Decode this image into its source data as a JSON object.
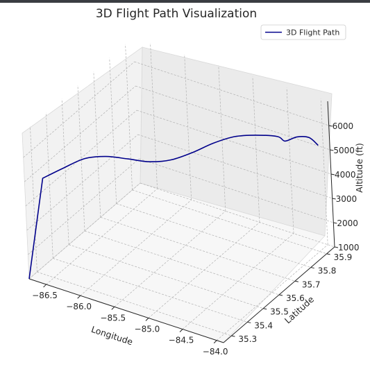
{
  "chart_data": {
    "type": "line",
    "projection": "3d",
    "title": "3D Flight Path Visualization",
    "xlabel": "Longitude",
    "ylabel": "Latitude",
    "zlabel": "Altitude (ft)",
    "xlim": [
      -86.75,
      -83.9
    ],
    "ylim": [
      35.25,
      35.95
    ],
    "zlim": [
      1000,
      7000
    ],
    "xticks": [
      "−86.5",
      "−86.0",
      "−85.5",
      "−85.0",
      "−84.5",
      "−84.0"
    ],
    "xtick_values": [
      -86.5,
      -86.0,
      -85.5,
      -85.0,
      -84.5,
      -84.0
    ],
    "yticks": [
      "35.3",
      "35.4",
      "35.5",
      "35.6",
      "35.7",
      "35.8",
      "35.9"
    ],
    "ytick_values": [
      35.3,
      35.4,
      35.5,
      35.6,
      35.7,
      35.8,
      35.9
    ],
    "zticks": [
      "1000",
      "2000",
      "3000",
      "4000",
      "5000",
      "6000"
    ],
    "ztick_values": [
      1000,
      2000,
      3000,
      4000,
      5000,
      6000
    ],
    "grid": true,
    "legend": "top-right",
    "series": [
      {
        "name": "3D Flight Path",
        "color": "#00008b",
        "points": [
          {
            "lon": -86.75,
            "lat": 35.25,
            "alt": 1000
          },
          {
            "lon": -86.6,
            "lat": 35.3,
            "alt": 5000
          },
          {
            "lon": -86.42,
            "lat": 35.357,
            "alt": 5271
          },
          {
            "lon": -86.24,
            "lat": 35.414,
            "alt": 5500
          },
          {
            "lon": -86.06,
            "lat": 35.471,
            "alt": 5432
          },
          {
            "lon": -85.88,
            "lat": 35.529,
            "alt": 5170
          },
          {
            "lon": -85.7,
            "lat": 35.586,
            "alt": 4900
          },
          {
            "lon": -85.52,
            "lat": 35.643,
            "alt": 4821
          },
          {
            "lon": -85.34,
            "lat": 35.7,
            "alt": 4962
          },
          {
            "lon": -85.16,
            "lat": 35.757,
            "alt": 5195
          },
          {
            "lon": -84.98,
            "lat": 35.814,
            "alt": 5313
          },
          {
            "lon": -84.8,
            "lat": 35.871,
            "alt": 5218
          },
          {
            "lon": -84.62,
            "lat": 35.929,
            "alt": 5000
          },
          {
            "lon": -84.44,
            "lat": 35.9,
            "alt": 5145
          },
          {
            "lon": -84.26,
            "lat": 35.9,
            "alt": 5480
          },
          {
            "lon": -84.08,
            "lat": 35.9,
            "alt": 5620
          },
          {
            "lon": -83.95,
            "lat": 35.9,
            "alt": 5420
          }
        ]
      }
    ]
  }
}
